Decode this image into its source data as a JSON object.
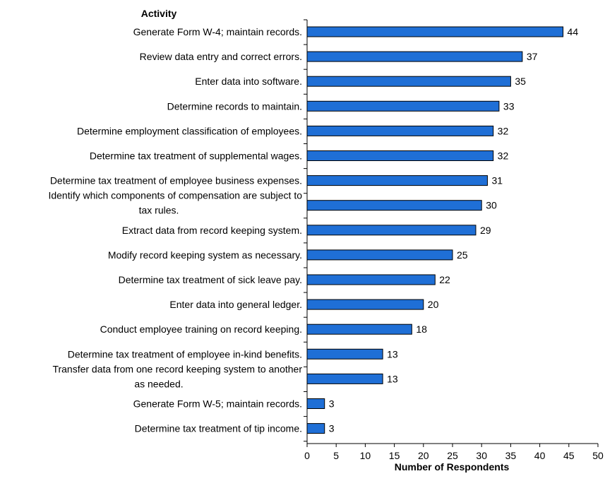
{
  "chart_data": {
    "type": "bar",
    "orientation": "horizontal",
    "category_axis_title": "Activity",
    "xlabel": "Number of Respondents",
    "xlim": [
      0,
      50
    ],
    "x_ticks": [
      0,
      5,
      10,
      15,
      20,
      25,
      30,
      35,
      40,
      45,
      50
    ],
    "bar_color": "#1f6fd6",
    "bar_outline": "#000000",
    "grid": false,
    "legend": "none",
    "categories": [
      "Generate Form W-4; maintain records.",
      "Review data entry and correct errors.",
      "Enter data into software.",
      "Determine records to maintain.",
      "Determine employment classification of employees.",
      "Determine tax treatment of supplemental wages.",
      "Determine tax treatment of employee business expenses.",
      "Identify which components of compensation are subject to tax rules.",
      "Extract data from record keeping system.",
      "Modify record keeping system as necessary.",
      "Determine tax treatment of sick leave pay.",
      "Enter data into general ledger.",
      "Conduct employee training on record keeping.",
      "Determine tax treatment of employee in-kind benefits.",
      "Transfer data from one record keeping system to another as needed.",
      "Generate Form W-5; maintain records.",
      "Determine tax treatment of tip income."
    ],
    "values": [
      44,
      37,
      35,
      33,
      32,
      32,
      31,
      30,
      29,
      25,
      22,
      20,
      18,
      13,
      13,
      3,
      3
    ]
  }
}
